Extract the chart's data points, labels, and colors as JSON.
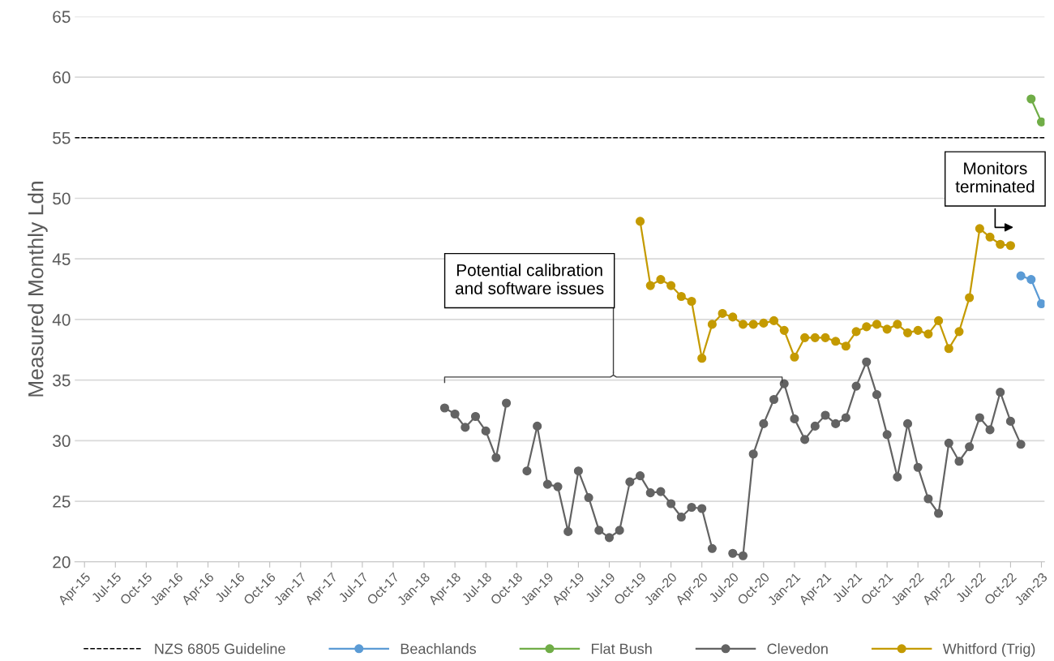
{
  "chart_data": {
    "type": "line",
    "ylabel": "Measured Monthly Ldn",
    "categories": [
      "Apr-15",
      null,
      null,
      "Jul-15",
      null,
      null,
      "Oct-15",
      null,
      null,
      "Jan-16",
      null,
      null,
      "Apr-16",
      null,
      null,
      "Jul-16",
      null,
      null,
      "Oct-16",
      null,
      null,
      "Jan-17",
      null,
      null,
      "Apr-17",
      null,
      null,
      "Jul-17",
      null,
      null,
      "Oct-17",
      null,
      null,
      "Jan-18",
      null,
      null,
      "Apr-18",
      null,
      null,
      "Jul-18",
      null,
      null,
      "Oct-18",
      null,
      null,
      "Jan-19",
      null,
      null,
      "Apr-19",
      null,
      null,
      "Jul-19",
      null,
      null,
      "Oct-19",
      null,
      null,
      "Jan-20",
      null,
      null,
      "Apr-20",
      null,
      null,
      "Jul-20",
      null,
      null,
      "Oct-20",
      null,
      null,
      "Jan-21",
      null,
      null,
      "Apr-21",
      null,
      null,
      "Jul-21",
      null,
      null,
      "Oct-21",
      null,
      null,
      "Jan-22",
      null,
      null,
      "Apr-22",
      null,
      null,
      "Jul-22",
      null,
      null,
      "Oct-22",
      null,
      null,
      "Jan-23"
    ],
    "series": [
      {
        "name": "Beachlands",
        "color": "#5b9bd5",
        "values": [
          null,
          null,
          null,
          null,
          null,
          null,
          null,
          null,
          null,
          null,
          null,
          null,
          null,
          null,
          null,
          null,
          null,
          null,
          null,
          null,
          null,
          null,
          null,
          null,
          null,
          null,
          null,
          null,
          null,
          null,
          null,
          null,
          null,
          null,
          null,
          null,
          null,
          null,
          null,
          null,
          null,
          null,
          null,
          null,
          null,
          null,
          null,
          null,
          null,
          null,
          null,
          null,
          null,
          null,
          null,
          null,
          null,
          null,
          null,
          null,
          null,
          null,
          null,
          null,
          null,
          null,
          null,
          null,
          null,
          null,
          null,
          null,
          null,
          null,
          null,
          null,
          null,
          null,
          null,
          null,
          null,
          null,
          null,
          null,
          null,
          null,
          null,
          null,
          null,
          null,
          null,
          43.6,
          43.3,
          41.3
        ]
      },
      {
        "name": "Flat Bush",
        "color": "#70ad47",
        "values": [
          null,
          null,
          null,
          null,
          null,
          null,
          null,
          null,
          null,
          null,
          null,
          null,
          null,
          null,
          null,
          null,
          null,
          null,
          null,
          null,
          null,
          null,
          null,
          null,
          null,
          null,
          null,
          null,
          null,
          null,
          null,
          null,
          null,
          null,
          null,
          null,
          null,
          null,
          null,
          null,
          null,
          null,
          null,
          null,
          null,
          null,
          null,
          null,
          null,
          null,
          null,
          null,
          null,
          null,
          null,
          null,
          null,
          null,
          null,
          null,
          null,
          null,
          null,
          null,
          null,
          null,
          null,
          null,
          null,
          null,
          null,
          null,
          null,
          null,
          null,
          null,
          null,
          null,
          null,
          null,
          null,
          null,
          null,
          null,
          null,
          null,
          null,
          null,
          null,
          null,
          null,
          null,
          58.2,
          56.3
        ]
      },
      {
        "name": "Clevedon",
        "color": "#636363",
        "values": [
          null,
          null,
          null,
          null,
          null,
          null,
          null,
          null,
          null,
          null,
          null,
          null,
          null,
          null,
          null,
          null,
          null,
          null,
          null,
          null,
          null,
          null,
          null,
          null,
          null,
          null,
          null,
          null,
          null,
          null,
          null,
          null,
          null,
          null,
          null,
          32.7,
          32.2,
          31.1,
          32.0,
          30.8,
          28.6,
          33.1,
          null,
          27.5,
          31.2,
          26.4,
          26.2,
          22.5,
          27.5,
          25.3,
          22.6,
          22.0,
          22.6,
          26.6,
          27.1,
          25.7,
          25.8,
          24.8,
          23.7,
          24.5,
          24.4,
          21.1,
          null,
          20.7,
          20.5,
          28.9,
          31.4,
          33.4,
          34.7,
          31.8,
          30.1,
          31.2,
          32.1,
          31.4,
          31.9,
          34.5,
          36.5,
          33.8,
          30.5,
          27.0,
          31.4,
          27.8,
          25.2,
          24.0,
          29.8,
          28.3,
          29.5,
          31.9,
          30.9,
          34.0,
          31.6,
          29.7,
          null,
          null
        ]
      },
      {
        "name": "Whitford (Trig)",
        "color": "#c49a00",
        "values": [
          null,
          null,
          null,
          null,
          null,
          null,
          null,
          null,
          null,
          null,
          null,
          null,
          null,
          null,
          null,
          null,
          null,
          null,
          null,
          null,
          null,
          null,
          null,
          null,
          null,
          null,
          null,
          null,
          null,
          null,
          null,
          null,
          null,
          null,
          null,
          null,
          null,
          null,
          null,
          null,
          null,
          null,
          null,
          null,
          null,
          null,
          null,
          null,
          null,
          null,
          null,
          null,
          null,
          null,
          48.1,
          42.8,
          43.3,
          42.8,
          41.9,
          41.5,
          36.8,
          39.6,
          40.5,
          40.2,
          39.6,
          39.6,
          39.7,
          39.9,
          39.1,
          36.9,
          38.5,
          38.5,
          38.5,
          38.2,
          37.8,
          39.0,
          39.4,
          39.6,
          39.2,
          39.6,
          38.9,
          39.1,
          38.8,
          39.9,
          37.6,
          39.0,
          41.8,
          47.5,
          46.8,
          46.2,
          46.1,
          null,
          null,
          null
        ]
      }
    ],
    "ref_lines": [
      {
        "axis": "y",
        "value": 55,
        "label": "NZS 6805 Guideline",
        "color": "#000000",
        "line_style": "dashed"
      }
    ],
    "annotations": [
      "Potential calibration\nand software issues",
      "Monitors\nterminated"
    ],
    "ylim": [
      20,
      65
    ],
    "yticks": [
      20,
      25,
      30,
      35,
      40,
      45,
      50,
      55,
      60,
      65
    ],
    "grid": "y",
    "legend": "bottom",
    "marker": "circle",
    "line_style": "solid"
  }
}
